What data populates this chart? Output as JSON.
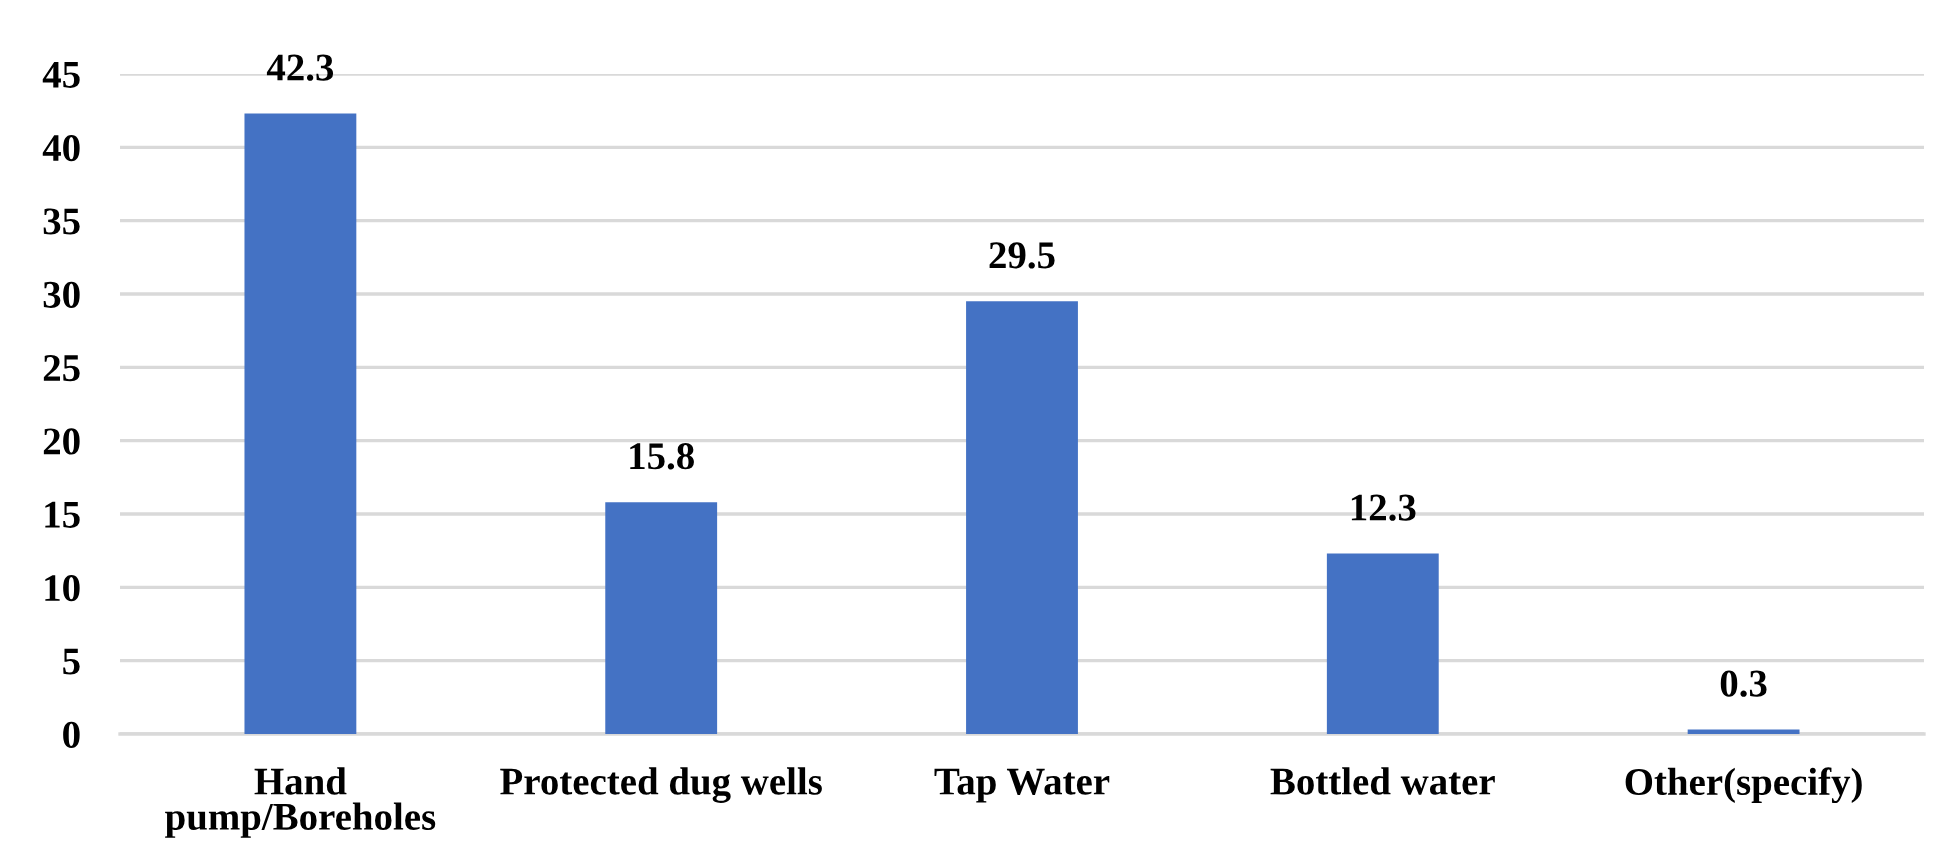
{
  "chart_data": {
    "type": "bar",
    "categories": [
      "Hand pump/Boreholes",
      "Protected dug wells",
      "Tap Water",
      "Bottled water",
      "Other(specify)"
    ],
    "values": [
      42.3,
      15.8,
      29.5,
      12.3,
      0.3
    ],
    "color": "#4472c4",
    "ylim": [
      0,
      45
    ],
    "yticks": [
      0,
      5,
      10,
      15,
      20,
      25,
      30,
      35,
      40,
      45
    ],
    "grid": "y",
    "data_labels": true
  }
}
